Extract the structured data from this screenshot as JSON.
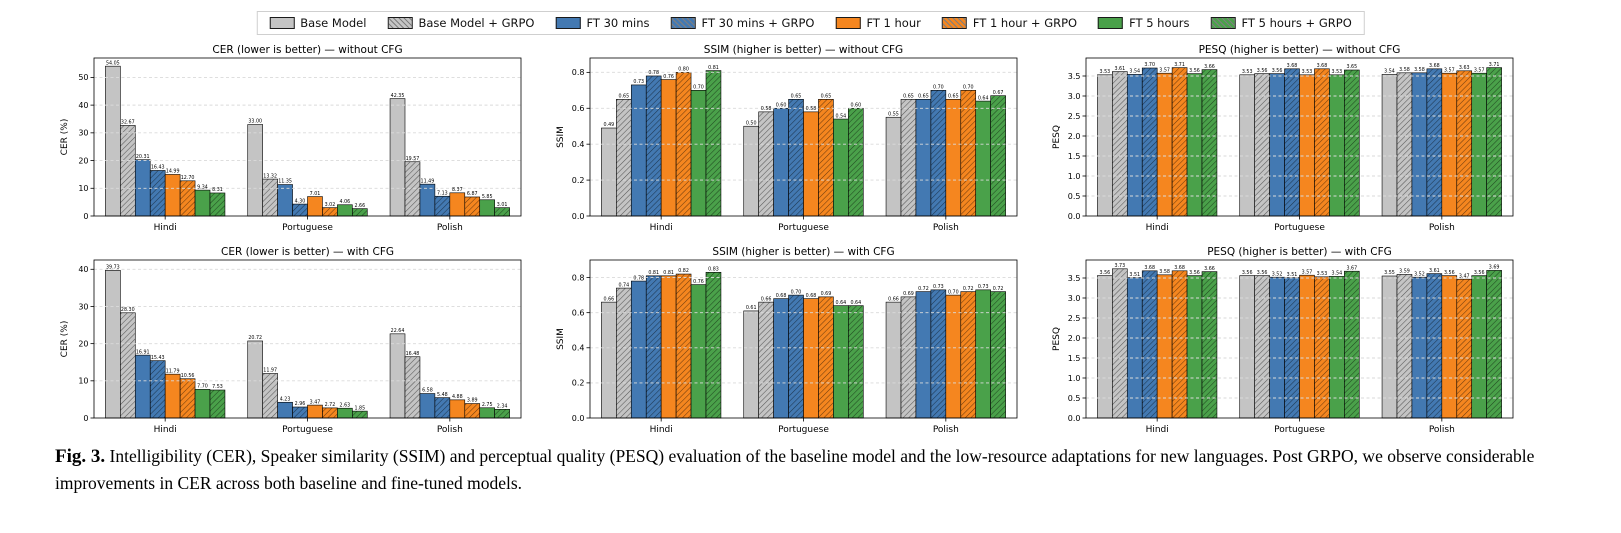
{
  "figure": {
    "caption_label": "Fig. 3.",
    "caption_text": " Intelligibility (CER), Speaker similarity (SSIM) and perceptual quality (PESQ) evaluation of the baseline model and the low-resource adaptations for new languages. Post GRPO, we observe considerable improvements in CER across both baseline and fine-tuned models."
  },
  "legend": {
    "items": [
      {
        "label": "Base Model",
        "color": "#c4c4c4",
        "hatch": false
      },
      {
        "label": "Base Model + GRPO",
        "color": "#c4c4c4",
        "hatch": true
      },
      {
        "label": "FT 30 mins",
        "color": "#4379b2",
        "hatch": false
      },
      {
        "label": "FT 30 mins + GRPO",
        "color": "#4379b2",
        "hatch": true
      },
      {
        "label": "FT 1 hour",
        "color": "#f5861f",
        "hatch": false
      },
      {
        "label": "FT 1 hour + GRPO",
        "color": "#f5861f",
        "hatch": true
      },
      {
        "label": "FT 5 hours",
        "color": "#4aa14a",
        "hatch": false
      },
      {
        "label": "FT 5 hours + GRPO",
        "color": "#4aa14a",
        "hatch": true
      }
    ]
  },
  "chart_data": [
    {
      "type": "bar",
      "title": "CER (lower is better) — without CFG",
      "ylabel": "CER (%)",
      "categories": [
        "Hindi",
        "Portuguese",
        "Polish"
      ],
      "yticks": [
        0,
        10,
        20,
        30,
        40,
        50
      ],
      "ytick_labels": [
        "0",
        "10",
        "20",
        "30",
        "40",
        "50"
      ],
      "ylim": [
        0,
        57
      ],
      "grid": true,
      "series": [
        {
          "name": "Base Model",
          "values": [
            54.05,
            33.0,
            42.35
          ]
        },
        {
          "name": "Base Model + GRPO",
          "values": [
            32.67,
            13.32,
            19.57
          ]
        },
        {
          "name": "FT 30 mins",
          "values": [
            20.31,
            11.35,
            11.49
          ]
        },
        {
          "name": "FT 30 mins + GRPO",
          "values": [
            16.43,
            4.3,
            7.13
          ]
        },
        {
          "name": "FT 1 hour",
          "values": [
            14.99,
            7.01,
            8.37
          ]
        },
        {
          "name": "FT 1 hour + GRPO",
          "values": [
            12.7,
            3.02,
            6.87
          ]
        },
        {
          "name": "FT 5 hours",
          "values": [
            9.34,
            4.06,
            5.85
          ]
        },
        {
          "name": "FT 5 hours + GRPO",
          "values": [
            8.31,
            2.66,
            3.01
          ]
        }
      ]
    },
    {
      "type": "bar",
      "title": "SSIM (higher is better) — without CFG",
      "ylabel": "SSIM",
      "categories": [
        "Hindi",
        "Portuguese",
        "Polish"
      ],
      "yticks": [
        0,
        0.2,
        0.4,
        0.6,
        0.8
      ],
      "ytick_labels": [
        "0.0",
        "0.2",
        "0.4",
        "0.6",
        "0.8"
      ],
      "ylim": [
        0,
        0.88
      ],
      "grid": true,
      "series": [
        {
          "name": "Base Model",
          "values": [
            0.49,
            0.5,
            0.55
          ]
        },
        {
          "name": "Base Model + GRPO",
          "values": [
            0.65,
            0.58,
            0.65
          ]
        },
        {
          "name": "FT 30 mins",
          "values": [
            0.73,
            0.6,
            0.65
          ]
        },
        {
          "name": "FT 30 mins + GRPO",
          "values": [
            0.78,
            0.65,
            0.7
          ]
        },
        {
          "name": "FT 1 hour",
          "values": [
            0.76,
            0.58,
            0.65
          ]
        },
        {
          "name": "FT 1 hour + GRPO",
          "values": [
            0.8,
            0.65,
            0.7
          ]
        },
        {
          "name": "FT 5 hours",
          "values": [
            0.7,
            0.54,
            0.64
          ]
        },
        {
          "name": "FT 5 hours + GRPO",
          "values": [
            0.81,
            0.6,
            0.67
          ]
        }
      ]
    },
    {
      "type": "bar",
      "title": "PESQ (higher is better) — without CFG",
      "ylabel": "PESQ",
      "categories": [
        "Hindi",
        "Portuguese",
        "Polish"
      ],
      "yticks": [
        0,
        0.5,
        1.0,
        1.5,
        2.0,
        2.5,
        3.0,
        3.5
      ],
      "ytick_labels": [
        "0.0",
        "0.5",
        "1.0",
        "1.5",
        "2.0",
        "2.5",
        "3.0",
        "3.5"
      ],
      "ylim": [
        0,
        3.95
      ],
      "grid": true,
      "series": [
        {
          "name": "Base Model",
          "values": [
            3.53,
            3.53,
            3.54
          ]
        },
        {
          "name": "Base Model + GRPO",
          "values": [
            3.61,
            3.56,
            3.58
          ]
        },
        {
          "name": "FT 30 mins",
          "values": [
            3.54,
            3.56,
            3.58
          ]
        },
        {
          "name": "FT 30 mins + GRPO",
          "values": [
            3.7,
            3.68,
            3.68
          ]
        },
        {
          "name": "FT 1 hour",
          "values": [
            3.57,
            3.53,
            3.57
          ]
        },
        {
          "name": "FT 1 hour + GRPO",
          "values": [
            3.71,
            3.68,
            3.63
          ]
        },
        {
          "name": "FT 5 hours",
          "values": [
            3.56,
            3.53,
            3.57
          ]
        },
        {
          "name": "FT 5 hours + GRPO",
          "values": [
            3.66,
            3.65,
            3.71
          ]
        }
      ]
    },
    {
      "type": "bar",
      "title": "CER (lower is better) — with CFG",
      "ylabel": "CER (%)",
      "categories": [
        "Hindi",
        "Portuguese",
        "Polish"
      ],
      "yticks": [
        0,
        10,
        20,
        30,
        40
      ],
      "ytick_labels": [
        "0",
        "10",
        "20",
        "30",
        "40"
      ],
      "ylim": [
        0,
        42.5
      ],
      "grid": true,
      "series": [
        {
          "name": "Base Model",
          "values": [
            39.73,
            20.72,
            22.64
          ]
        },
        {
          "name": "Base Model + GRPO",
          "values": [
            28.3,
            11.97,
            16.48
          ]
        },
        {
          "name": "FT 30 mins",
          "values": [
            16.91,
            4.23,
            6.58
          ]
        },
        {
          "name": "FT 30 mins + GRPO",
          "values": [
            15.43,
            2.96,
            5.48
          ]
        },
        {
          "name": "FT 1 hour",
          "values": [
            11.79,
            3.47,
            4.88
          ]
        },
        {
          "name": "FT 1 hour + GRPO",
          "values": [
            10.56,
            2.72,
            3.89
          ]
        },
        {
          "name": "FT 5 hours",
          "values": [
            7.7,
            2.63,
            2.75
          ]
        },
        {
          "name": "FT 5 hours + GRPO",
          "values": [
            7.53,
            1.85,
            2.34
          ]
        }
      ]
    },
    {
      "type": "bar",
      "title": "SSIM (higher is better) — with CFG",
      "ylabel": "SSIM",
      "categories": [
        "Hindi",
        "Portuguese",
        "Polish"
      ],
      "yticks": [
        0,
        0.2,
        0.4,
        0.6,
        0.8
      ],
      "ytick_labels": [
        "0.0",
        "0.2",
        "0.4",
        "0.6",
        "0.8"
      ],
      "ylim": [
        0,
        0.9
      ],
      "grid": true,
      "series": [
        {
          "name": "Base Model",
          "values": [
            0.66,
            0.61,
            0.66
          ]
        },
        {
          "name": "Base Model + GRPO",
          "values": [
            0.74,
            0.66,
            0.69
          ]
        },
        {
          "name": "FT 30 mins",
          "values": [
            0.78,
            0.68,
            0.72
          ]
        },
        {
          "name": "FT 30 mins + GRPO",
          "values": [
            0.81,
            0.7,
            0.73
          ]
        },
        {
          "name": "FT 1 hour",
          "values": [
            0.81,
            0.68,
            0.7
          ]
        },
        {
          "name": "FT 1 hour + GRPO",
          "values": [
            0.82,
            0.69,
            0.72
          ]
        },
        {
          "name": "FT 5 hours",
          "values": [
            0.76,
            0.64,
            0.73
          ]
        },
        {
          "name": "FT 5 hours + GRPO",
          "values": [
            0.83,
            0.64,
            0.72
          ]
        }
      ]
    },
    {
      "type": "bar",
      "title": "PESQ (higher is better) — with CFG",
      "ylabel": "PESQ",
      "categories": [
        "Hindi",
        "Portuguese",
        "Polish"
      ],
      "yticks": [
        0,
        0.5,
        1.0,
        1.5,
        2.0,
        2.5,
        3.0,
        3.5
      ],
      "ytick_labels": [
        "0.0",
        "0.5",
        "1.0",
        "1.5",
        "2.0",
        "2.5",
        "3.0",
        "3.5"
      ],
      "ylim": [
        0,
        3.95
      ],
      "grid": true,
      "series": [
        {
          "name": "Base Model",
          "values": [
            3.56,
            3.56,
            3.55
          ]
        },
        {
          "name": "Base Model + GRPO",
          "values": [
            3.73,
            3.56,
            3.59
          ]
        },
        {
          "name": "FT 30 mins",
          "values": [
            3.51,
            3.52,
            3.52
          ]
        },
        {
          "name": "FT 30 mins + GRPO",
          "values": [
            3.68,
            3.51,
            3.61
          ]
        },
        {
          "name": "FT 1 hour",
          "values": [
            3.58,
            3.57,
            3.56
          ]
        },
        {
          "name": "FT 1 hour + GRPO",
          "values": [
            3.68,
            3.53,
            3.47
          ]
        },
        {
          "name": "FT 5 hours",
          "values": [
            3.56,
            3.54,
            3.56
          ]
        },
        {
          "name": "FT 5 hours + GRPO",
          "values": [
            3.66,
            3.67,
            3.69
          ]
        }
      ]
    }
  ]
}
